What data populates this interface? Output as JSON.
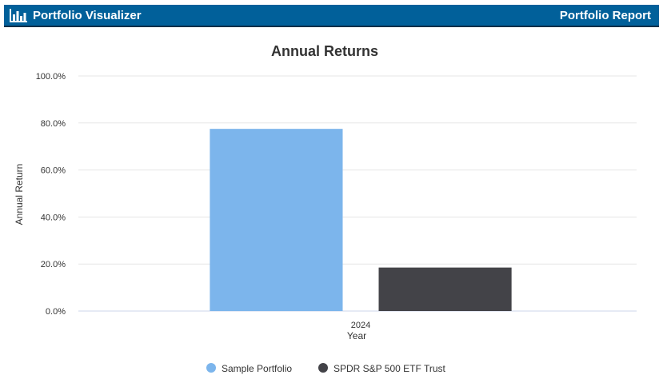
{
  "header": {
    "app_name": "Portfolio Visualizer",
    "app_icon": "bar-chart-icon",
    "report_title": "Portfolio Report"
  },
  "colors": {
    "header_bg": "#01609a",
    "sample_portfolio": "#7cb5ec",
    "spdr": "#434348"
  },
  "chart_data": {
    "type": "bar",
    "title": "Annual Returns",
    "xlabel": "Year",
    "ylabel": "Annual Return",
    "categories": [
      "2024"
    ],
    "series": [
      {
        "name": "Sample Portfolio",
        "values": [
          77.5
        ],
        "color": "#7cb5ec"
      },
      {
        "name": "SPDR S&P 500 ETF Trust",
        "values": [
          18.5
        ],
        "color": "#434348"
      }
    ],
    "ylim": [
      0,
      100
    ],
    "yticks": [
      0,
      20,
      40,
      60,
      80,
      100
    ],
    "ytick_labels": [
      "0.0%",
      "20.0%",
      "40.0%",
      "60.0%",
      "80.0%",
      "100.0%"
    ],
    "grid": true,
    "legend": "bottom-center"
  }
}
